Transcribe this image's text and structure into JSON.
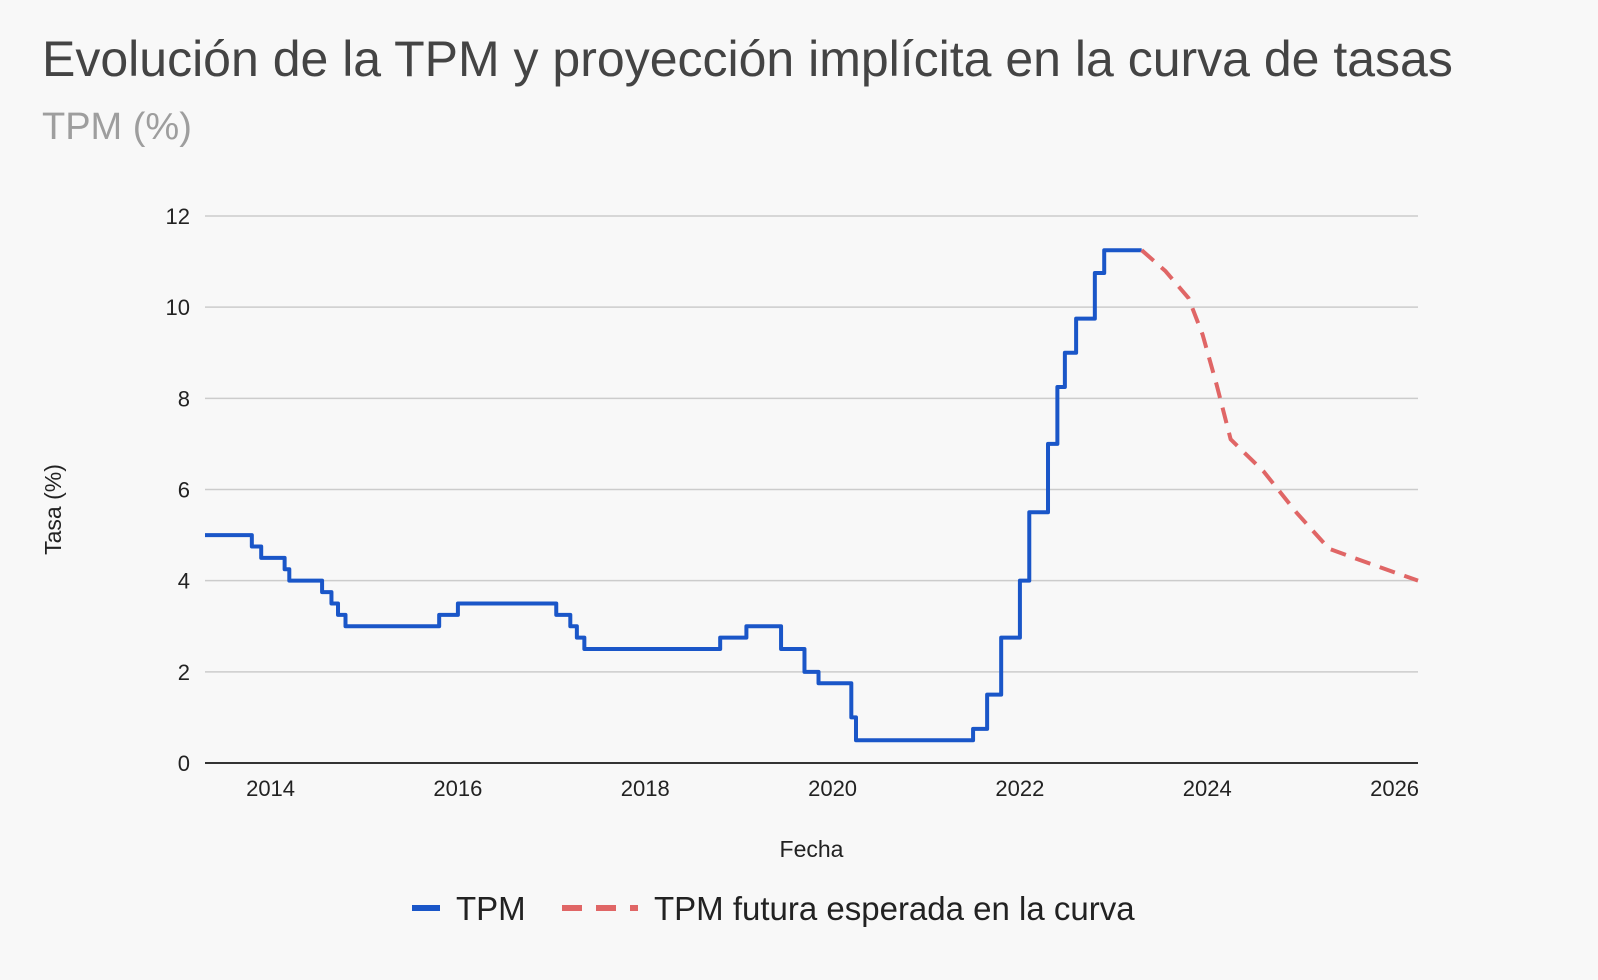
{
  "title": "Evolución de la TPM y proyección implícita en la curva de tasas",
  "subtitle": "TPM (%)",
  "chart_data": {
    "type": "line",
    "xlabel": "Fecha",
    "ylabel": "Tasa (%)",
    "xlim": [
      2013.3,
      2026.25
    ],
    "ylim": [
      0,
      12
    ],
    "x_ticks": [
      "2014",
      "2016",
      "2018",
      "2020",
      "2022",
      "2024",
      "2026"
    ],
    "y_ticks": [
      "0",
      "2",
      "4",
      "6",
      "8",
      "10",
      "12"
    ],
    "grid": true,
    "legend_position": "bottom",
    "series": [
      {
        "name": "TPM",
        "style": "step",
        "color": "#1a56c8",
        "points": [
          [
            2013.3,
            5.0
          ],
          [
            2013.8,
            4.75
          ],
          [
            2013.9,
            4.5
          ],
          [
            2014.15,
            4.25
          ],
          [
            2014.2,
            4.0
          ],
          [
            2014.55,
            3.75
          ],
          [
            2014.65,
            3.5
          ],
          [
            2014.72,
            3.25
          ],
          [
            2014.8,
            3.0
          ],
          [
            2015.8,
            3.25
          ],
          [
            2016.0,
            3.5
          ],
          [
            2017.05,
            3.25
          ],
          [
            2017.2,
            3.0
          ],
          [
            2017.27,
            2.75
          ],
          [
            2017.35,
            2.5
          ],
          [
            2018.8,
            2.75
          ],
          [
            2019.08,
            3.0
          ],
          [
            2019.45,
            2.5
          ],
          [
            2019.7,
            2.0
          ],
          [
            2019.85,
            1.75
          ],
          [
            2020.2,
            1.0
          ],
          [
            2020.25,
            0.5
          ],
          [
            2021.5,
            0.75
          ],
          [
            2021.65,
            1.5
          ],
          [
            2021.8,
            2.75
          ],
          [
            2022.0,
            4.0
          ],
          [
            2022.1,
            5.5
          ],
          [
            2022.3,
            7.0
          ],
          [
            2022.4,
            8.25
          ],
          [
            2022.48,
            9.0
          ],
          [
            2022.6,
            9.75
          ],
          [
            2022.8,
            10.75
          ],
          [
            2022.9,
            11.25
          ],
          [
            2023.3,
            11.25
          ]
        ]
      },
      {
        "name": "TPM futura esperada en la curva",
        "style": "dashed",
        "color": "#e06666",
        "points": [
          [
            2023.3,
            11.25
          ],
          [
            2023.55,
            10.8
          ],
          [
            2023.8,
            10.2
          ],
          [
            2023.95,
            9.4
          ],
          [
            2024.1,
            8.3
          ],
          [
            2024.25,
            7.1
          ],
          [
            2024.6,
            6.4
          ],
          [
            2024.95,
            5.5
          ],
          [
            2025.3,
            4.7
          ],
          [
            2025.7,
            4.4
          ],
          [
            2026.25,
            4.0
          ]
        ]
      }
    ]
  }
}
